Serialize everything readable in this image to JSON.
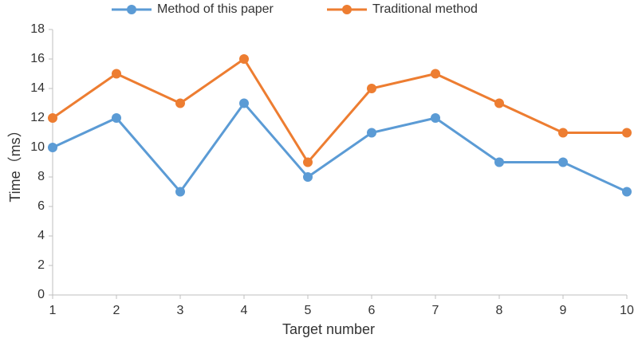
{
  "chart_data": {
    "type": "line",
    "x_label": "Target number",
    "y_label": "Time（ms）",
    "x": [
      1,
      2,
      3,
      4,
      5,
      6,
      7,
      8,
      9,
      10
    ],
    "series": [
      {
        "name": "Method of this paper",
        "color": "#5b9bd5",
        "values": [
          10,
          12,
          7,
          13,
          8,
          11,
          12,
          9,
          9,
          7
        ]
      },
      {
        "name": "Traditional method",
        "color": "#ed7d31",
        "values": [
          12,
          15,
          13,
          16,
          9,
          14,
          15,
          13,
          11,
          11
        ]
      }
    ],
    "xlim": [
      1,
      10
    ],
    "xticks": [
      1,
      2,
      3,
      4,
      5,
      6,
      7,
      8,
      9,
      10
    ],
    "ylim": [
      0,
      18
    ],
    "yticks": [
      0,
      2,
      4,
      6,
      8,
      10,
      12,
      14,
      16,
      18
    ],
    "grid": false,
    "legend": "top"
  }
}
